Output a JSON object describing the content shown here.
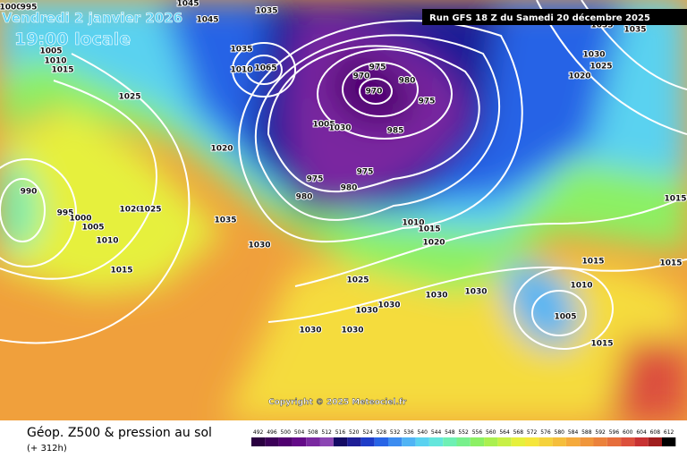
{
  "header": {
    "date": "Vendredi 2 janvier 2026",
    "local_time": "19:00 locale",
    "run": "Run GFS 18 Z du Samedi 20 décembre 2025"
  },
  "map": {
    "copyright": "Copyright © 2025 Meteociel.fr",
    "isobar_labels": [
      1000,
      995,
      1045,
      1045,
      1035,
      1005,
      1010,
      1015,
      1025,
      1035,
      1065,
      1010,
      1020,
      975,
      970,
      970,
      980,
      975,
      1005,
      1030,
      985,
      975,
      980,
      975,
      980,
      990,
      995,
      1000,
      1005,
      1010,
      1020,
      1025,
      1035,
      1030,
      1015,
      1010,
      1015,
      1020,
      1025,
      1030,
      1030,
      1030,
      1030,
      1030,
      1030,
      1035,
      1035,
      1030,
      1025,
      1020,
      1015,
      1010,
      1005,
      1015,
      1015,
      1015
    ]
  },
  "footer": {
    "title": "Géop. Z500 & pression au sol",
    "lead": "(+ 312h)"
  },
  "legend": {
    "ticks": [
      492,
      496,
      500,
      504,
      508,
      512,
      516,
      520,
      524,
      528,
      532,
      536,
      540,
      544,
      548,
      552,
      556,
      560,
      564,
      568,
      572,
      576,
      580,
      584,
      588,
      592,
      596,
      600,
      604,
      608,
      612
    ],
    "colors": [
      "#2a0040",
      "#3c0058",
      "#500070",
      "#640a88",
      "#7a28a0",
      "#8c46b4",
      "#140a64",
      "#1e1e96",
      "#1e3cc8",
      "#2864e6",
      "#3c8cf0",
      "#50b4f5",
      "#5ad2f0",
      "#64e6dc",
      "#6ef0b4",
      "#78f08c",
      "#8cf064",
      "#aaf050",
      "#c8f046",
      "#e6f03c",
      "#f5e63c",
      "#f5d23c",
      "#f5be3c",
      "#f5aa3c",
      "#f0963c",
      "#eb823c",
      "#e66e3c",
      "#dc503c",
      "#c83232",
      "#a01e1e",
      "#000000"
    ]
  }
}
